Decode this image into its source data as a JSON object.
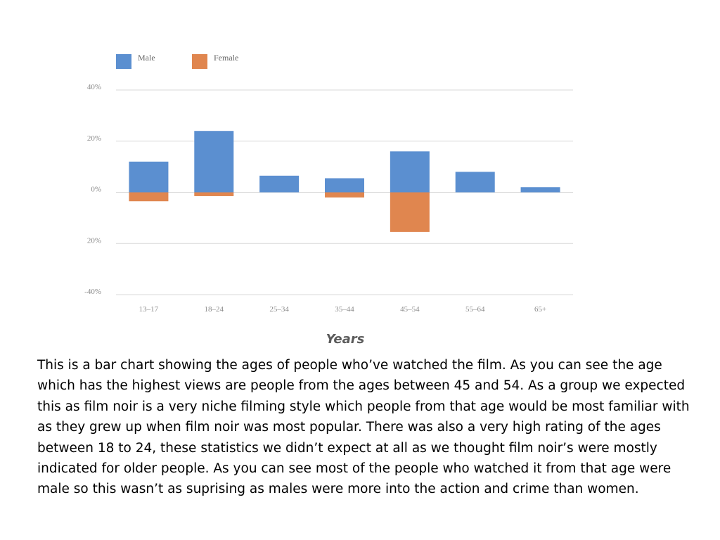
{
  "chart_data": {
    "type": "bar",
    "categories": [
      "13–17",
      "18–24",
      "25–34",
      "35–44",
      "45–54",
      "55–64",
      "65+"
    ],
    "series": [
      {
        "name": "Male",
        "color": "#5b8fd0",
        "values": [
          12,
          24,
          6.5,
          5.5,
          16,
          8,
          2
        ]
      },
      {
        "name": "Female",
        "color": "#e0864f",
        "values": [
          -3.5,
          -1.5,
          0,
          -2,
          -15.5,
          0,
          0
        ]
      }
    ],
    "yticks": [
      {
        "value": 40,
        "label": "40%"
      },
      {
        "value": 20,
        "label": "20%"
      },
      {
        "value": 0,
        "label": "0%"
      },
      {
        "value": -20,
        "label": "20%"
      },
      {
        "value": -40,
        "label": "-40%"
      }
    ],
    "ylim": [
      -40,
      40
    ],
    "xlabel": "Years",
    "grid": true,
    "legend_position": "top-left"
  },
  "description": "This is a bar chart showing the ages of people who’ve watched the film.  As you can see the age which has the highest views are people from the ages between 45 and 54. As a group we expected this as film noir is a very niche filming style which people from that age would be most familiar with as they grew up when film noir was most popular. There was also a very high rating of the ages between 18 to 24, these statistics we didn’t expect at all as we thought film noir’s were mostly indicated for older people. As you can see most of the people who watched it from that age were male so this wasn’t as suprising as males were more into the action and crime than women."
}
